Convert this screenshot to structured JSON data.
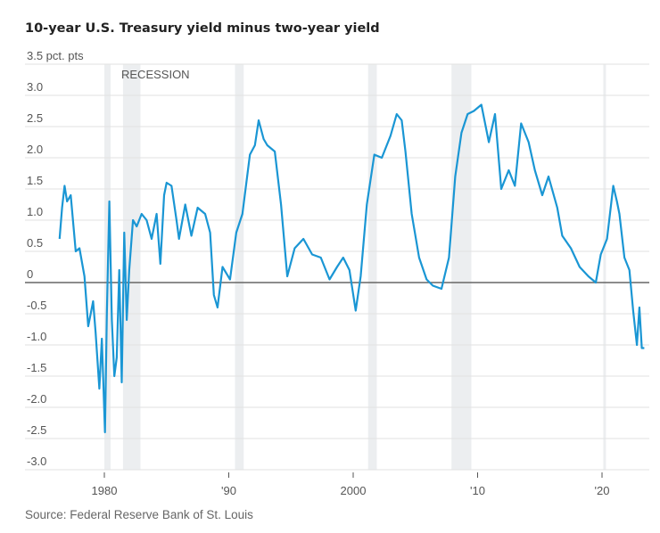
{
  "chart_data": {
    "type": "line",
    "title": "10-year U.S. Treasury yield minus two-year yield",
    "ylabel": "pct. pts",
    "source": "Source: Federal Reserve Bank of St. Louis",
    "annotation": "RECESSION",
    "xlim": [
      1974.1,
      2023.8
    ],
    "ylim": [
      -3.0,
      3.5
    ],
    "y_ticks": [
      3.5,
      3.0,
      2.5,
      2.0,
      1.5,
      1.0,
      0.5,
      0,
      -0.5,
      -1.0,
      -1.5,
      -2.0,
      -2.5,
      -3.0
    ],
    "y_tick_labels": [
      "3.5 pct. pts",
      "3.0",
      "2.5",
      "2.0",
      "1.5",
      "1.0",
      "0.5",
      "0",
      "-0.5",
      "-1.0",
      "-1.5",
      "-2.0",
      "-2.5",
      "-3.0"
    ],
    "x_ticks": [
      1980,
      1990,
      2000,
      2010,
      2020
    ],
    "x_tick_labels": [
      "1980",
      "'90",
      "2000",
      "'10",
      "'20"
    ],
    "grid": true,
    "recessions": [
      [
        1980.0,
        1980.5
      ],
      [
        1981.5,
        1982.9
      ],
      [
        1990.5,
        1991.2
      ],
      [
        2001.2,
        2001.9
      ],
      [
        2007.9,
        2009.5
      ],
      [
        2020.1,
        2020.3
      ]
    ],
    "colors": {
      "line": "#1a96d4",
      "recession": "#eceef0",
      "grid": "#e2e2e2",
      "zero": "#666666"
    },
    "series": [
      {
        "x": [
          1976.4,
          1976.6,
          1976.8,
          1977.0,
          1977.3,
          1977.7,
          1978.0,
          1978.4,
          1978.7,
          1978.9,
          1979.1,
          1979.3,
          1979.6,
          1979.8,
          1980.05,
          1980.2,
          1980.4,
          1980.6,
          1980.8,
          1981.0,
          1981.2,
          1981.4,
          1981.6,
          1981.8,
          1982.0,
          1982.3,
          1982.6,
          1983.0,
          1983.4,
          1983.8,
          1984.2,
          1984.5,
          1984.8,
          1985.0,
          1985.4,
          1985.8,
          1986.0,
          1986.5,
          1987.0,
          1987.5,
          1988.1,
          1988.5,
          1988.8,
          1989.1,
          1989.5,
          1990.1,
          1990.6,
          1991.1,
          1991.7,
          1992.1,
          1992.4,
          1992.8,
          1993.1,
          1993.7,
          1994.2,
          1994.7,
          1995.3,
          1996.0,
          1996.7,
          1997.4,
          1998.1,
          1998.7,
          1999.2,
          1999.7,
          2000.2,
          2000.6,
          2001.1,
          2001.7,
          2002.3,
          2003.0,
          2003.5,
          2003.9,
          2004.2,
          2004.7,
          2005.3,
          2005.9,
          2006.4,
          2007.1,
          2007.7,
          2008.2,
          2008.7,
          2009.2,
          2009.7,
          2010.3,
          2010.9,
          2011.4,
          2011.9,
          2012.5,
          2013.0,
          2013.5,
          2014.1,
          2014.6,
          2015.2,
          2015.7,
          2016.4,
          2016.8,
          2017.5,
          2018.2,
          2018.9,
          2019.5,
          2019.9,
          2020.4,
          2020.9,
          2021.2,
          2021.4,
          2021.8,
          2022.2,
          2022.5,
          2022.8,
          2023.0,
          2023.2,
          2023.4
        ],
        "y": [
          0.7,
          1.2,
          1.55,
          1.3,
          1.4,
          0.5,
          0.55,
          0.1,
          -0.7,
          -0.5,
          -0.3,
          -0.8,
          -1.7,
          -0.9,
          -2.4,
          -0.5,
          1.3,
          -0.6,
          -1.5,
          -1.2,
          0.2,
          -1.6,
          0.8,
          -0.6,
          0.2,
          1.0,
          0.9,
          1.1,
          1.0,
          0.7,
          1.1,
          0.3,
          1.4,
          1.6,
          1.55,
          1.0,
          0.7,
          1.25,
          0.75,
          1.2,
          1.1,
          0.8,
          -0.2,
          -0.4,
          0.25,
          0.05,
          0.8,
          1.1,
          2.05,
          2.2,
          2.6,
          2.3,
          2.2,
          2.1,
          1.25,
          0.1,
          0.55,
          0.7,
          0.45,
          0.4,
          0.05,
          0.25,
          0.4,
          0.2,
          -0.45,
          0.1,
          1.25,
          2.05,
          2.0,
          2.35,
          2.7,
          2.6,
          2.1,
          1.1,
          0.4,
          0.05,
          -0.05,
          -0.1,
          0.4,
          1.7,
          2.4,
          2.7,
          2.75,
          2.85,
          2.25,
          2.7,
          1.5,
          1.8,
          1.55,
          2.55,
          2.25,
          1.8,
          1.4,
          1.7,
          1.2,
          0.75,
          0.55,
          0.25,
          0.1,
          0.0,
          0.45,
          0.7,
          1.55,
          1.3,
          1.1,
          0.4,
          0.2,
          -0.45,
          -1.0,
          -0.4,
          -1.05,
          -1.05
        ]
      }
    ]
  }
}
